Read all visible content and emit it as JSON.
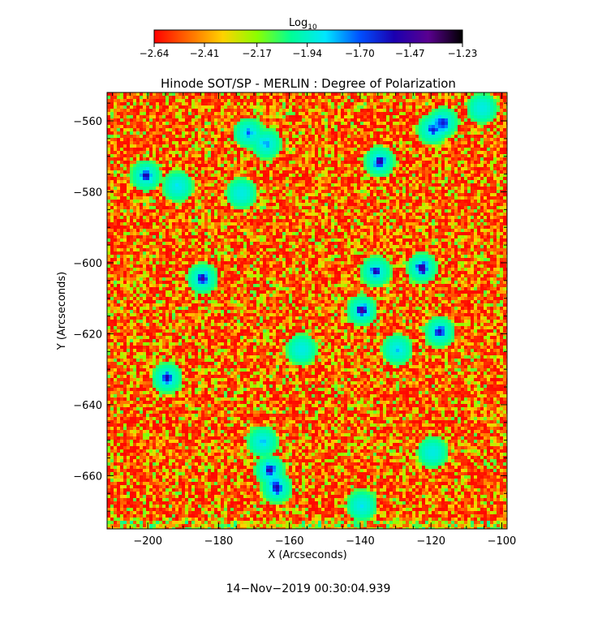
{
  "chart_data": {
    "type": "heatmap",
    "title": "Hinode SOT/SP - MERLIN : Degree of Polarization",
    "xlabel": "X (Arcseconds)",
    "ylabel": "Y (Arcseconds)",
    "xlim": [
      -211.5,
      -98.5
    ],
    "ylim": [
      -675,
      -552
    ],
    "x_ticks": [
      -200,
      -180,
      -160,
      -140,
      -120,
      -100
    ],
    "x_tick_labels": [
      "−200",
      "−180",
      "−160",
      "−140",
      "−120",
      "−100"
    ],
    "y_ticks": [
      -560,
      -580,
      -600,
      -620,
      -640,
      -660
    ],
    "y_tick_labels": [
      "−560",
      "−580",
      "−600",
      "−620",
      "−640",
      "−660"
    ],
    "colorbar": {
      "label_main": "Log",
      "label_sub": "10",
      "range": [
        -2.64,
        -1.23
      ],
      "ticks": [
        -2.64,
        -2.41,
        -2.17,
        -1.94,
        -1.7,
        -1.47,
        -1.23
      ],
      "tick_labels": [
        "−2.64",
        "−2.41",
        "−2.17",
        "−1.94",
        "−1.70",
        "−1.47",
        "−1.23"
      ],
      "colors": [
        "#ff0000",
        "#ff6a00",
        "#ffd200",
        "#8cff00",
        "#00ff96",
        "#00e6ff",
        "#0050ff",
        "#1a00b0",
        "#5a0090",
        "#000000"
      ]
    },
    "background_level": -2.5,
    "features": [
      {
        "x": -201,
        "y": -575,
        "value": -1.5
      },
      {
        "x": -192,
        "y": -578,
        "value": -1.85
      },
      {
        "x": -185,
        "y": -604,
        "value": -1.45
      },
      {
        "x": -195,
        "y": -632,
        "value": -1.5
      },
      {
        "x": -172,
        "y": -563,
        "value": -1.7
      },
      {
        "x": -167,
        "y": -566,
        "value": -1.75
      },
      {
        "x": -168,
        "y": -650,
        "value": -1.8
      },
      {
        "x": -166,
        "y": -658,
        "value": -1.45
      },
      {
        "x": -164,
        "y": -663,
        "value": -1.5
      },
      {
        "x": -140,
        "y": -613,
        "value": -1.4
      },
      {
        "x": -136,
        "y": -602,
        "value": -1.5
      },
      {
        "x": -135,
        "y": -571,
        "value": -1.45
      },
      {
        "x": -123,
        "y": -601,
        "value": -1.4
      },
      {
        "x": -120,
        "y": -562,
        "value": -1.6
      },
      {
        "x": -117,
        "y": -560,
        "value": -1.6
      },
      {
        "x": -118,
        "y": -619,
        "value": -1.55
      },
      {
        "x": -130,
        "y": -624,
        "value": -1.8
      },
      {
        "x": -106,
        "y": -556,
        "value": -1.9
      },
      {
        "x": -157,
        "y": -624,
        "value": -1.9
      },
      {
        "x": -174,
        "y": -580,
        "value": -1.95
      },
      {
        "x": -140,
        "y": -668,
        "value": -1.85
      },
      {
        "x": -120,
        "y": -653,
        "value": -2.0
      }
    ]
  },
  "footer": {
    "timestamp": "14−Nov−2019 00:30:04.939"
  }
}
